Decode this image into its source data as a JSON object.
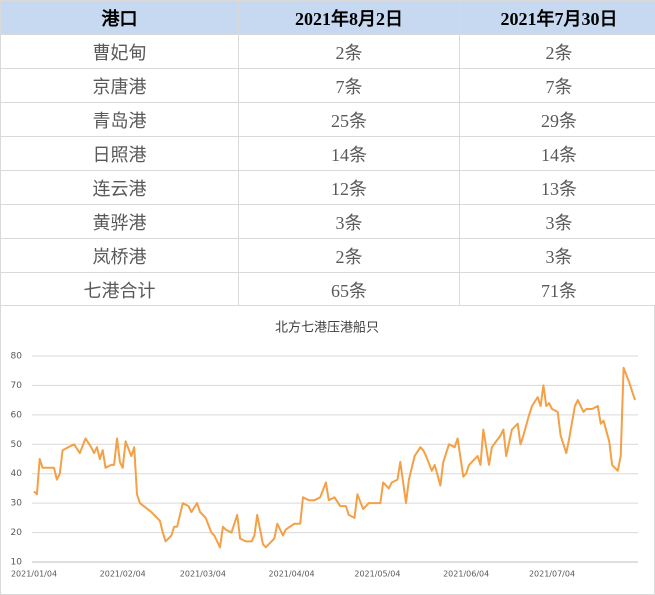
{
  "table": {
    "header": [
      "港口",
      "2021年8月2日",
      "2021年7月30日"
    ],
    "rows": [
      [
        "曹妃甸",
        "2条",
        "2条"
      ],
      [
        "京唐港",
        "7条",
        "7条"
      ],
      [
        "青岛港",
        "25条",
        "29条"
      ],
      [
        "日照港",
        "14条",
        "14条"
      ],
      [
        "连云港",
        "12条",
        "13条"
      ],
      [
        "黄骅港",
        "3条",
        "3条"
      ],
      [
        "岚桥港",
        "2条",
        "3条"
      ],
      [
        "七港合计",
        "65条",
        "71条"
      ]
    ]
  },
  "chart_data": {
    "type": "line",
    "title": "北方七港压港船只",
    "color": "#f4a046",
    "grid": true,
    "ylim": [
      10,
      80
    ],
    "yticks": [
      10,
      20,
      30,
      40,
      50,
      60,
      70,
      80
    ],
    "xlim": [
      "2021/01/04",
      "2021/08/02"
    ],
    "xticks": [
      "2021/01/04",
      "2021/02/04",
      "2021/03/04",
      "2021/04/04",
      "2021/05/04",
      "2021/06/04",
      "2021/07/04"
    ],
    "x": [
      "2021/01/04",
      "2021/01/05",
      "2021/01/06",
      "2021/01/07",
      "2021/01/10",
      "2021/01/11",
      "2021/01/12",
      "2021/01/13",
      "2021/01/14",
      "2021/01/16",
      "2021/01/18",
      "2021/01/20",
      "2021/01/22",
      "2021/01/24",
      "2021/01/25",
      "2021/01/26",
      "2021/01/27",
      "2021/01/28",
      "2021/01/29",
      "2021/01/31",
      "2021/02/01",
      "2021/02/02",
      "2021/02/03",
      "2021/02/04",
      "2021/02/05",
      "2021/02/07",
      "2021/02/08",
      "2021/02/09",
      "2021/02/10",
      "2021/02/14",
      "2021/02/17",
      "2021/02/18",
      "2021/02/19",
      "2021/02/21",
      "2021/02/22",
      "2021/02/23",
      "2021/02/25",
      "2021/02/27",
      "2021/02/28",
      "2021/03/02",
      "2021/03/03",
      "2021/03/05",
      "2021/03/07",
      "2021/03/08",
      "2021/03/10",
      "2021/03/11",
      "2021/03/12",
      "2021/03/14",
      "2021/03/16",
      "2021/03/17",
      "2021/03/19",
      "2021/03/21",
      "2021/03/22",
      "2021/03/23",
      "2021/03/25",
      "2021/03/26",
      "2021/03/28",
      "2021/03/29",
      "2021/03/30",
      "2021/04/01",
      "2021/04/02",
      "2021/04/05",
      "2021/04/07",
      "2021/04/08",
      "2021/04/10",
      "2021/04/12",
      "2021/04/14",
      "2021/04/16",
      "2021/04/17",
      "2021/04/19",
      "2021/04/21",
      "2021/04/23",
      "2021/04/24",
      "2021/04/26",
      "2021/04/27",
      "2021/04/29",
      "2021/04/30",
      "2021/05/01",
      "2021/05/03",
      "2021/05/05",
      "2021/05/06",
      "2021/05/08",
      "2021/05/09",
      "2021/05/11",
      "2021/05/12",
      "2021/05/14",
      "2021/05/15",
      "2021/05/17",
      "2021/05/19",
      "2021/05/20",
      "2021/05/21",
      "2021/05/23",
      "2021/05/24",
      "2021/05/26",
      "2021/05/27",
      "2021/05/29",
      "2021/05/31",
      "2021/06/01",
      "2021/06/03",
      "2021/06/04",
      "2021/06/05",
      "2021/06/08",
      "2021/06/09",
      "2021/06/10",
      "2021/06/12",
      "2021/06/13",
      "2021/06/16",
      "2021/06/17",
      "2021/06/18",
      "2021/06/20",
      "2021/06/22",
      "2021/06/23",
      "2021/06/24",
      "2021/06/26",
      "2021/06/27",
      "2021/06/29",
      "2021/06/30",
      "2021/07/01",
      "2021/07/02",
      "2021/07/03",
      "2021/07/04",
      "2021/07/06",
      "2021/07/07",
      "2021/07/09",
      "2021/07/10",
      "2021/07/12",
      "2021/07/13",
      "2021/07/15",
      "2021/07/16",
      "2021/07/18",
      "2021/07/20",
      "2021/07/21",
      "2021/07/22",
      "2021/07/24",
      "2021/07/25",
      "2021/07/27",
      "2021/07/28",
      "2021/07/29",
      "2021/07/31",
      "2021/08/01",
      "2021/08/02"
    ],
    "values": [
      34,
      33,
      45,
      42,
      42,
      42,
      38,
      40,
      48,
      49,
      50,
      47,
      52,
      49,
      47,
      49,
      45,
      48,
      42,
      43,
      43,
      52,
      44,
      42,
      51,
      46,
      49,
      33,
      30,
      27,
      24,
      20,
      17,
      19,
      22,
      22,
      30,
      29,
      27,
      30,
      27,
      25,
      20,
      19,
      15,
      22,
      21,
      20,
      26,
      18,
      17,
      17,
      19,
      26,
      16,
      15,
      17,
      18,
      23,
      19,
      21,
      23,
      23,
      32,
      31,
      31,
      32,
      37,
      31,
      32,
      29,
      29,
      26,
      25,
      33,
      28,
      29,
      30,
      30,
      30,
      37,
      35,
      37,
      38,
      44,
      30,
      38,
      46,
      49,
      48,
      46,
      41,
      43,
      36,
      44,
      50,
      49,
      52,
      39,
      40,
      43,
      46,
      43,
      55,
      43,
      49,
      53,
      55,
      46,
      55,
      57,
      50,
      53,
      60,
      63,
      66,
      63,
      70,
      63,
      64,
      62,
      61,
      53,
      47,
      52,
      63,
      65,
      61,
      62,
      62,
      63,
      57,
      58,
      51,
      43,
      41,
      46,
      76,
      71,
      68,
      65
    ]
  }
}
